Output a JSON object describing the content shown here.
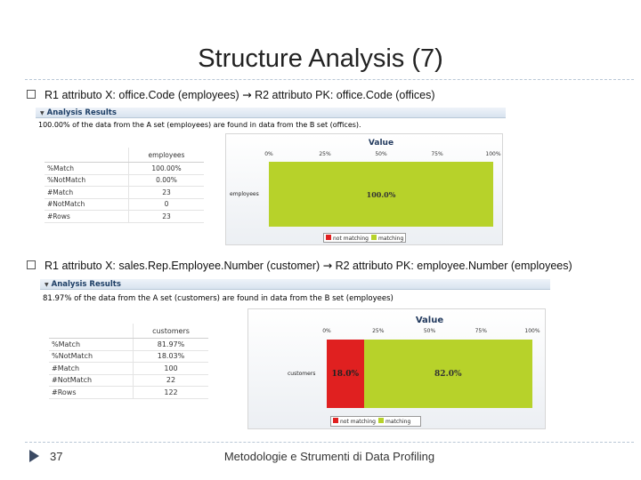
{
  "slide": {
    "title": "Structure Analysis (7)",
    "page_number": "37",
    "footer": "Metodologie e Strumenti di Data Profiling"
  },
  "bullets": [
    {
      "text_before": "R1 attributo X: office.Code (employees) ",
      "arrow": "→",
      "text_after": " R2 attributo PK: office.Code (offices)"
    },
    {
      "text_before": "R1 attributo X: sales.Rep.Employee.Number (customer) ",
      "arrow": "→",
      "text_after": " R2 attributo PK: employee.Number (employees)"
    }
  ],
  "panels": [
    {
      "header": "Analysis Results",
      "summary": "100.00% of the data from the A set (employees) are found in data from the B set (offices).",
      "table": {
        "column": "employees",
        "rows": [
          {
            "label": "%Match",
            "value": "100.00%"
          },
          {
            "label": "%NotMatch",
            "value": "0.00%"
          },
          {
            "label": "#Match",
            "value": "23"
          },
          {
            "label": "#NotMatch",
            "value": "0"
          },
          {
            "label": "#Rows",
            "value": "23"
          }
        ]
      }
    },
    {
      "header": "Analysis Results",
      "summary": "81.97% of the data from the A set (customers) are found in data from the B set (employees)",
      "table": {
        "column": "customers",
        "rows": [
          {
            "label": "%Match",
            "value": "81.97%"
          },
          {
            "label": "%NotMatch",
            "value": "18.03%"
          },
          {
            "label": "#Match",
            "value": "100"
          },
          {
            "label": "#NotMatch",
            "value": "22"
          },
          {
            "label": "#Rows",
            "value": "122"
          }
        ]
      }
    }
  ],
  "chart_data": [
    {
      "type": "bar",
      "orientation": "horizontal",
      "stacked": true,
      "title": "Value",
      "categories": [
        "employees"
      ],
      "series": [
        {
          "name": "not matching",
          "values": [
            0.0
          ],
          "color": "#e02020"
        },
        {
          "name": "matching",
          "values": [
            100.0
          ],
          "color": "#b7d22a"
        }
      ],
      "bar_labels": [
        "",
        "100.0%"
      ],
      "x_ticks": [
        "0%",
        "25%",
        "50%",
        "75%",
        "100%"
      ],
      "xlim": [
        0,
        100
      ],
      "legend": "bottom"
    },
    {
      "type": "bar",
      "orientation": "horizontal",
      "stacked": true,
      "title": "Value",
      "categories": [
        "customers"
      ],
      "series": [
        {
          "name": "not matching",
          "values": [
            18.0
          ],
          "color": "#e02020"
        },
        {
          "name": "matching",
          "values": [
            82.0
          ],
          "color": "#b7d22a"
        }
      ],
      "bar_labels": [
        "18.0%",
        "82.0%"
      ],
      "x_ticks": [
        "0%",
        "25%",
        "50%",
        "75%",
        "100%"
      ],
      "xlim": [
        0,
        100
      ],
      "legend": "bottom"
    }
  ]
}
